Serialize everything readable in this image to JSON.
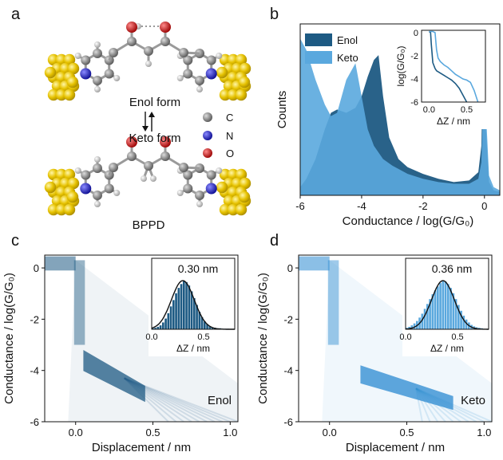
{
  "panels": {
    "a": {
      "letter": "a",
      "top_label": "Enol form",
      "bottom_label": "Keto form",
      "molecule_label": "BPPD",
      "legend": [
        {
          "symbol": "C",
          "color": "#7b7b7b"
        },
        {
          "symbol": "N",
          "color": "#1a1ab8"
        },
        {
          "symbol": "O",
          "color": "#cc1010"
        }
      ],
      "colors": {
        "gold": "#e6c200",
        "carbon": "#8a8a8a",
        "hydrogen": "#d8d8d8"
      }
    },
    "b": {
      "letter": "b"
    },
    "c": {
      "letter": "c"
    },
    "d": {
      "letter": "d"
    }
  },
  "chart_data": [
    {
      "id": "b",
      "type": "area",
      "xlabel": "Conductance / log(G/G₀)",
      "ylabel": "Counts",
      "xlim": [
        -6,
        0.5
      ],
      "xticks": [
        "-6",
        "-4",
        "-2",
        "0"
      ],
      "yticks": [],
      "legend_position": "top-left",
      "series": [
        {
          "name": "Enol",
          "color": "#1d5a83",
          "x": [
            -6.0,
            -5.8,
            -5.5,
            -5.2,
            -5.0,
            -4.8,
            -4.5,
            -4.2,
            -4.0,
            -3.8,
            -3.6,
            -3.45,
            -3.3,
            -3.1,
            -2.8,
            -2.5,
            -2.0,
            -1.5,
            -1.0,
            -0.5,
            -0.2,
            -0.1,
            -0.05,
            0.0,
            0.05,
            0.15,
            0.3,
            0.5
          ],
          "y": [
            0.05,
            0.1,
            0.22,
            0.4,
            0.5,
            0.52,
            0.5,
            0.53,
            0.6,
            0.72,
            0.82,
            0.85,
            0.6,
            0.35,
            0.22,
            0.17,
            0.13,
            0.1,
            0.08,
            0.09,
            0.14,
            0.3,
            0.7,
            0.98,
            0.4,
            0.08,
            0.03,
            0.02
          ]
        },
        {
          "name": "Keto",
          "color": "#5aa8de",
          "x": [
            -6.0,
            -5.8,
            -5.5,
            -5.2,
            -5.0,
            -4.8,
            -4.5,
            -4.2,
            -4.0,
            -3.8,
            -3.6,
            -3.3,
            -3.0,
            -2.5,
            -2.0,
            -1.5,
            -1.0,
            -0.5,
            -0.2,
            -0.1,
            -0.05,
            0.0,
            0.05,
            0.15,
            0.3,
            0.5
          ],
          "y": [
            0.95,
            0.88,
            0.7,
            0.55,
            0.48,
            0.5,
            0.7,
            0.8,
            0.6,
            0.4,
            0.3,
            0.22,
            0.18,
            0.13,
            0.1,
            0.08,
            0.07,
            0.07,
            0.1,
            0.2,
            0.5,
            0.95,
            0.5,
            0.12,
            0.05,
            0.03
          ]
        }
      ],
      "inset": {
        "xlabel": "ΔZ / nm",
        "ylabel": "log(G/G₀)",
        "xlim": [
          -0.1,
          0.75
        ],
        "ylim": [
          -6,
          0.2
        ],
        "xticks": [
          "0.0",
          "0.5"
        ],
        "yticks": [
          "0",
          "-2",
          "-4",
          "-6"
        ],
        "series": [
          {
            "name": "Enol",
            "color": "#1d5a83",
            "x": [
              0.0,
              0.02,
              0.03,
              0.05,
              0.08,
              0.1,
              0.15,
              0.2,
              0.25,
              0.3,
              0.35,
              0.4,
              0.45,
              0.5
            ],
            "y": [
              0.1,
              0.0,
              -1.0,
              -2.6,
              -3.1,
              -3.3,
              -3.5,
              -3.7,
              -3.9,
              -4.1,
              -4.4,
              -4.8,
              -5.4,
              -6.0
            ]
          },
          {
            "name": "Keto",
            "color": "#5aa8de",
            "x": [
              0.0,
              0.05,
              0.08,
              0.1,
              0.12,
              0.15,
              0.2,
              0.25,
              0.3,
              0.35,
              0.4,
              0.45,
              0.5,
              0.55,
              0.6,
              0.65
            ],
            "y": [
              0.1,
              0.1,
              0.0,
              -1.5,
              -2.2,
              -2.5,
              -2.8,
              -3.0,
              -3.3,
              -3.6,
              -3.8,
              -4.0,
              -4.1,
              -4.3,
              -5.0,
              -6.0
            ]
          }
        ]
      }
    },
    {
      "id": "c",
      "type": "heatmap",
      "xlabel": "Displacement / nm",
      "ylabel": "Conductance / log(G/G₀)",
      "xlim": [
        -0.2,
        1.05
      ],
      "ylim": [
        -6,
        0.5
      ],
      "xticks": [
        "0.0",
        "0.5",
        "1.0"
      ],
      "yticks": [
        "0",
        "-2",
        "-4",
        "-6"
      ],
      "color": "#1d5a83",
      "annotation": "Enol",
      "plateau": {
        "x0": 0.05,
        "y0": -3.2,
        "x1": 0.45,
        "y1": -4.6
      },
      "inset": {
        "type": "histogram",
        "annotation": "0.30 nm",
        "xlabel": "ΔZ / nm",
        "xlim": [
          0.0,
          0.8
        ],
        "xticks": [
          "0.0",
          "0.5"
        ],
        "bar_color": "#1d5a83",
        "fit_mean": 0.3,
        "bins": [
          0.0,
          0.025,
          0.05,
          0.075,
          0.1,
          0.125,
          0.15,
          0.175,
          0.2,
          0.225,
          0.25,
          0.275,
          0.3,
          0.325,
          0.35,
          0.375,
          0.4,
          0.425,
          0.45,
          0.475,
          0.5,
          0.525,
          0.55,
          0.575,
          0.6,
          0.625,
          0.65,
          0.675,
          0.7,
          0.725
        ],
        "counts": [
          0.02,
          0.03,
          0.05,
          0.08,
          0.14,
          0.22,
          0.33,
          0.47,
          0.6,
          0.74,
          0.85,
          0.93,
          1.0,
          0.97,
          0.9,
          0.78,
          0.64,
          0.5,
          0.36,
          0.25,
          0.16,
          0.1,
          0.06,
          0.04,
          0.03,
          0.02,
          0.02,
          0.01,
          0.01,
          0.01
        ]
      }
    },
    {
      "id": "d",
      "type": "heatmap",
      "xlabel": "Displacement / nm",
      "ylabel": "Conductance / log(G/G₀)",
      "xlim": [
        -0.2,
        1.05
      ],
      "ylim": [
        -6,
        0.5
      ],
      "xticks": [
        "0.0",
        "0.5",
        "1.0"
      ],
      "yticks": [
        "0",
        "-2",
        "-4",
        "-6"
      ],
      "color": "#2b8ad1",
      "annotation": "Keto",
      "plateau": {
        "x0": 0.2,
        "y0": -3.8,
        "x1": 0.8,
        "y1": -5.0
      },
      "inset": {
        "type": "histogram",
        "annotation": "0.36 nm",
        "xlabel": "ΔZ / nm",
        "xlim": [
          0.0,
          0.8
        ],
        "xticks": [
          "0.0",
          "0.5"
        ],
        "bar_color": "#5aa8de",
        "fit_mean": 0.36,
        "bins": [
          0.0,
          0.025,
          0.05,
          0.075,
          0.1,
          0.125,
          0.15,
          0.175,
          0.2,
          0.225,
          0.25,
          0.275,
          0.3,
          0.325,
          0.35,
          0.375,
          0.4,
          0.425,
          0.45,
          0.475,
          0.5,
          0.525,
          0.55,
          0.575,
          0.6,
          0.625,
          0.65,
          0.675,
          0.7,
          0.725
        ],
        "counts": [
          0.03,
          0.05,
          0.08,
          0.12,
          0.17,
          0.24,
          0.32,
          0.42,
          0.52,
          0.62,
          0.72,
          0.8,
          0.88,
          0.95,
          1.0,
          0.98,
          0.93,
          0.85,
          0.74,
          0.62,
          0.5,
          0.38,
          0.28,
          0.2,
          0.14,
          0.09,
          0.06,
          0.04,
          0.03,
          0.02
        ]
      }
    }
  ]
}
